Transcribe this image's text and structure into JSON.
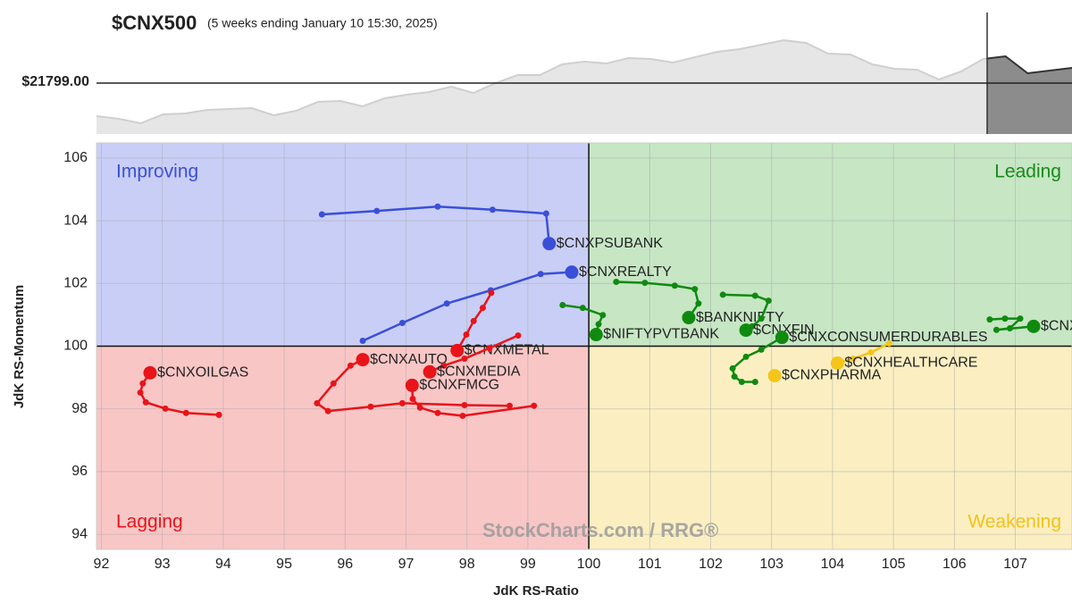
{
  "chart_data": {
    "type": "rrg",
    "title": "$CNX500",
    "subtitle": "(5 weeks ending January 10 15:30, 2025)",
    "x_label": "JdK RS-Ratio",
    "y_label": "JdK RS-Momentum",
    "watermark": "StockCharts.com / RRG®",
    "xlim": [
      91.92,
      107.93
    ],
    "ylim": [
      93.52,
      106.48
    ],
    "xticks": [
      92,
      93,
      94,
      95,
      96,
      97,
      98,
      99,
      100,
      101,
      102,
      103,
      104,
      105,
      106,
      107
    ],
    "yticks": [
      94,
      96,
      98,
      100,
      102,
      104,
      106
    ],
    "grid": true,
    "center": [
      100,
      100
    ],
    "quadrants": [
      {
        "name": "Improving",
        "corner": "top-left",
        "color": "#c9cef6",
        "text_color": "#3a4fd8"
      },
      {
        "name": "Leading",
        "corner": "top-right",
        "color": "#c6e6c4",
        "text_color": "#1a8a1a"
      },
      {
        "name": "Lagging",
        "corner": "bottom-left",
        "color": "#f9c6c6",
        "text_color": "#e8141a"
      },
      {
        "name": "Weakening",
        "corner": "bottom-right",
        "color": "#fbefc2",
        "text_color": "#f2c21a"
      }
    ],
    "series": [
      {
        "name": "$CNXPSUBANK",
        "color": "#3a4fd8",
        "x": [
          95.62,
          96.52,
          97.52,
          98.42,
          99.3,
          99.35
        ],
        "y": [
          104.2,
          104.31,
          104.45,
          104.35,
          104.23,
          103.27
        ]
      },
      {
        "name": "$CNXREALTY",
        "color": "#3a4fd8",
        "x": [
          96.29,
          96.94,
          97.67,
          98.39,
          99.21,
          99.72
        ],
        "y": [
          100.17,
          100.74,
          101.36,
          101.78,
          102.3,
          102.36
        ]
      },
      {
        "name": "$CNXOILGAS",
        "color": "#e8141a",
        "x": [
          93.93,
          93.39,
          93.05,
          92.73,
          92.64,
          92.68,
          92.8
        ],
        "y": [
          97.81,
          97.87,
          98.01,
          98.21,
          98.52,
          98.81,
          99.15
        ]
      },
      {
        "name": "$CNXAUTO",
        "color": "#e8141a",
        "x": [
          98.7,
          97.96,
          96.94,
          96.42,
          95.72,
          95.54,
          95.81,
          96.09,
          96.29
        ],
        "y": [
          98.1,
          98.12,
          98.18,
          98.07,
          97.93,
          98.18,
          98.81,
          99.38,
          99.57
        ]
      },
      {
        "name": "$CNXMETAL",
        "color": "#e8141a",
        "x": [
          98.4,
          98.26,
          98.11,
          97.99,
          97.84
        ],
        "y": [
          101.7,
          101.22,
          100.8,
          100.37,
          99.86
        ]
      },
      {
        "name": "$CNXMEDIA",
        "color": "#e8141a",
        "x": [
          98.84,
          98.37,
          97.96,
          97.62,
          97.39
        ],
        "y": [
          100.34,
          99.94,
          99.6,
          99.38,
          99.18
        ]
      },
      {
        "name": "$CNXFMCG",
        "color": "#e8141a",
        "x": [
          99.1,
          97.93,
          97.52,
          97.23,
          97.11,
          97.1
        ],
        "y": [
          98.1,
          97.78,
          97.87,
          98.04,
          98.32,
          98.75
        ]
      },
      {
        "name": "$NIFTYPVTBANK",
        "color": "#0f8a0f",
        "x": [
          99.57,
          99.9,
          100.23,
          100.16,
          100.12
        ],
        "y": [
          101.31,
          101.22,
          100.99,
          100.7,
          100.37
        ]
      },
      {
        "name": "$BANKNIFTY",
        "color": "#0f8a0f",
        "x": [
          100.45,
          100.92,
          101.41,
          101.74,
          101.8,
          101.64
        ],
        "y": [
          102.05,
          102.02,
          101.93,
          101.82,
          101.36,
          100.91
        ]
      },
      {
        "name": "$CNXFIN",
        "color": "#0f8a0f",
        "x": [
          102.2,
          102.73,
          102.95,
          102.83,
          102.68,
          102.58
        ],
        "y": [
          101.64,
          101.61,
          101.45,
          100.88,
          100.63,
          100.51
        ]
      },
      {
        "name": "$CNXCONSUMERDURABLES",
        "color": "#0f8a0f",
        "x": [
          102.73,
          102.51,
          102.39,
          102.36,
          102.58,
          102.83,
          103.17
        ],
        "y": [
          98.86,
          98.86,
          99.03,
          99.29,
          99.66,
          99.89,
          100.28
        ]
      },
      {
        "name": "$CNXIT",
        "color": "#0f8a0f",
        "x": [
          106.58,
          106.83,
          107.08,
          106.91,
          106.69,
          107.3
        ],
        "y": [
          100.85,
          100.88,
          100.88,
          100.57,
          100.52,
          100.63
        ]
      },
      {
        "name": "$CNXHEALTHCARE",
        "color": "#f5c518",
        "x": [
          104.93,
          104.63,
          104.34,
          104.08
        ],
        "y": [
          100.09,
          99.8,
          99.6,
          99.46
        ]
      },
      {
        "name": "$CNXPHARMA",
        "color": "#f5c518",
        "x": [
          103.05
        ],
        "y": [
          99.06
        ]
      }
    ],
    "price": {
      "label": "$21799.00",
      "level": 21799,
      "ylim": [
        20980,
        22990
      ],
      "values": [
        21267,
        21224,
        21152,
        21296,
        21310,
        21368,
        21382,
        21396,
        21281,
        21353,
        21497,
        21511,
        21425,
        21554,
        21612,
        21655,
        21741,
        21640,
        21798,
        21928,
        21928,
        22100,
        22143,
        22114,
        22200,
        22186,
        22129,
        22215,
        22301,
        22344,
        22416,
        22487,
        22444,
        22272,
        22258,
        22100,
        22028,
        22014,
        21856,
        21985,
        22186,
        22229,
        21956,
        22000,
        22042
      ]
    }
  }
}
